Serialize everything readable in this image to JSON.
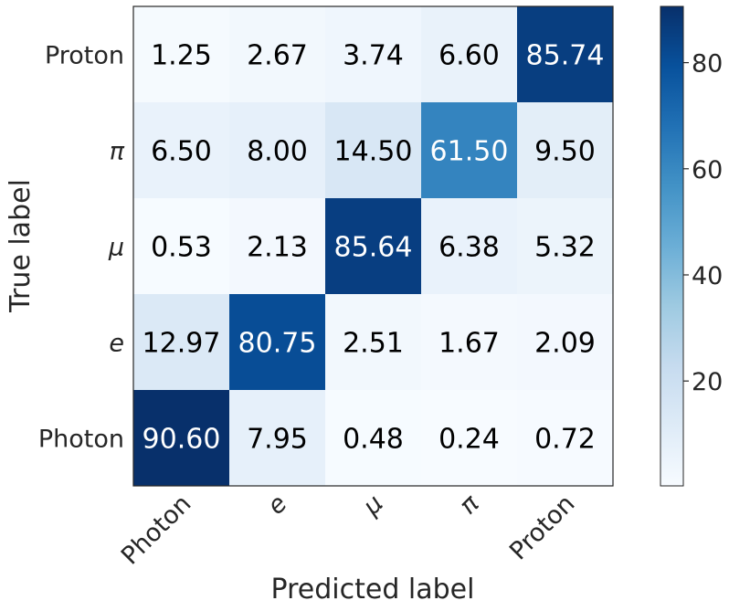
{
  "chart_data": {
    "type": "heatmap",
    "xlabel": "Predicted label",
    "ylabel": "True label",
    "x_categories": [
      "Photon",
      "e",
      "μ",
      "π",
      "Proton"
    ],
    "y_categories": [
      "Proton",
      "π",
      "μ",
      "e",
      "Photon"
    ],
    "values": [
      [
        1.25,
        2.67,
        3.74,
        6.6,
        85.74
      ],
      [
        6.5,
        8.0,
        14.5,
        61.5,
        9.5
      ],
      [
        0.53,
        2.13,
        85.64,
        6.38,
        5.32
      ],
      [
        12.97,
        80.75,
        2.51,
        1.67,
        2.09
      ],
      [
        90.6,
        7.95,
        0.48,
        0.24,
        0.72
      ]
    ],
    "value_labels": [
      [
        "1.25",
        "2.67",
        "3.74",
        "6.60",
        "85.74"
      ],
      [
        "6.50",
        "8.00",
        "14.50",
        "61.50",
        "9.50"
      ],
      [
        "0.53",
        "2.13",
        "85.64",
        "6.38",
        "5.32"
      ],
      [
        "12.97",
        "80.75",
        "2.51",
        "1.67",
        "2.09"
      ],
      [
        "90.60",
        "7.95",
        "0.48",
        "0.24",
        "0.72"
      ]
    ],
    "colormap": "Blues",
    "color_range": [
      0.24,
      90.6
    ],
    "colorbar_ticks": [
      20,
      40,
      60,
      80
    ],
    "colorbar_tick_labels": [
      "20",
      "40",
      "60",
      "80"
    ],
    "italic_labels": [
      "e",
      "μ",
      "π"
    ],
    "grid": false
  }
}
